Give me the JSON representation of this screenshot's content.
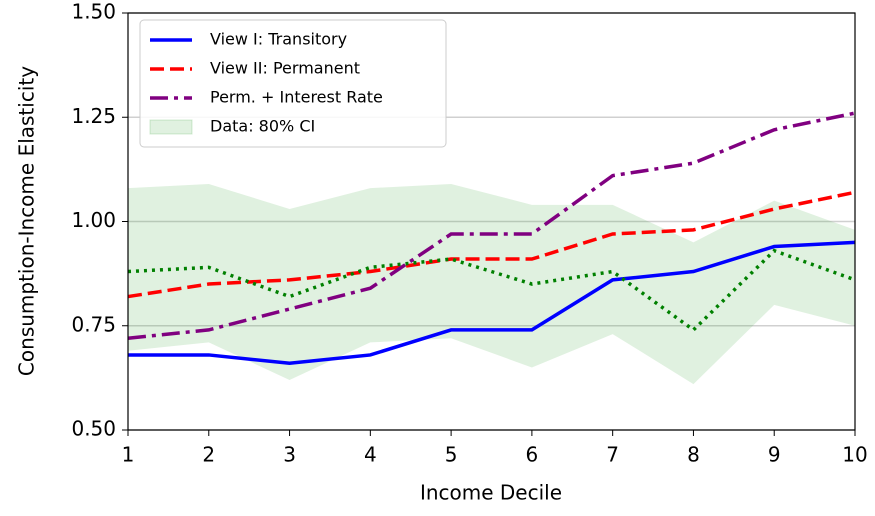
{
  "chart_data": {
    "type": "line",
    "xlabel": "Income Decile",
    "ylabel": "Consumption-Income Elasticity",
    "x": [
      1,
      2,
      3,
      4,
      5,
      6,
      7,
      8,
      9,
      10
    ],
    "xlim": [
      1,
      10
    ],
    "xticks": [
      1,
      2,
      3,
      4,
      5,
      6,
      7,
      8,
      9,
      10
    ],
    "ylim": [
      0.5,
      1.5
    ],
    "yticks": [
      {
        "value": 0.5,
        "label": "0.50"
      },
      {
        "value": 0.75,
        "label": "0.75"
      },
      {
        "value": 1,
        "label": "1.00"
      },
      {
        "value": 1.25,
        "label": "1.25"
      },
      {
        "value": 1.5,
        "label": "1.50"
      }
    ],
    "grid": "y",
    "legend": "upper left",
    "bands": [
      {
        "name": "Data: 80% CI",
        "color": "#2ca02c",
        "upper": [
          1.08,
          1.09,
          1.03,
          1.08,
          1.09,
          1.04,
          1.04,
          0.95,
          1.05,
          0.98
        ],
        "lower": [
          0.69,
          0.71,
          0.62,
          0.71,
          0.72,
          0.65,
          0.73,
          0.61,
          0.8,
          0.75
        ]
      }
    ],
    "series": [
      {
        "name": "View I: Transitory",
        "color": "#0000ff",
        "linestyle": "solid",
        "values": [
          0.68,
          0.68,
          0.66,
          0.68,
          0.74,
          0.74,
          0.86,
          0.88,
          0.94,
          0.95
        ]
      },
      {
        "name": "View II: Permanent",
        "color": "#ff0000",
        "linestyle": "dashed",
        "values": [
          0.82,
          0.85,
          0.86,
          0.88,
          0.91,
          0.91,
          0.97,
          0.98,
          1.03,
          1.07
        ]
      },
      {
        "name": "Perm. + Interest Rate",
        "color": "#800080",
        "linestyle": "dashdot",
        "values": [
          0.72,
          0.74,
          0.79,
          0.84,
          0.97,
          0.97,
          1.11,
          1.14,
          1.22,
          1.26
        ]
      },
      {
        "color": "#008000",
        "linestyle": "dotted",
        "values": [
          0.88,
          0.89,
          0.82,
          0.89,
          0.91,
          0.85,
          0.88,
          0.74,
          0.93,
          0.86
        ]
      }
    ]
  }
}
